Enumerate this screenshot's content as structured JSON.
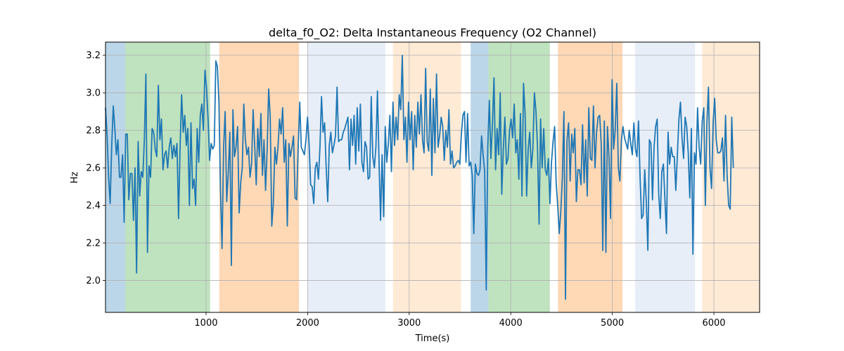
{
  "chart_data": {
    "type": "line",
    "title": "delta_f0_O2: Delta Instantaneous Frequency (O2 Channel)",
    "xlabel": "Time(s)",
    "ylabel": "Hz",
    "xlim": [
      10,
      6450
    ],
    "ylim": [
      1.83,
      3.27
    ],
    "grid": true,
    "line_color": "#1f77b4",
    "xticks": [
      1000,
      2000,
      3000,
      4000,
      5000,
      6000
    ],
    "xtick_labels": [
      "1000",
      "2000",
      "3000",
      "4000",
      "5000",
      "6000"
    ],
    "yticks": [
      2.0,
      2.2,
      2.4,
      2.6,
      2.8,
      3.0,
      3.2
    ],
    "ytick_labels": [
      "2.0",
      "2.2",
      "2.4",
      "2.6",
      "2.8",
      "3.0",
      "3.2"
    ],
    "bands": [
      {
        "start": 10,
        "end": 205,
        "color": "#1f77b4",
        "opacity": 0.3
      },
      {
        "start": 205,
        "end": 1040,
        "color": "#2ca02c",
        "opacity": 0.3
      },
      {
        "start": 1130,
        "end": 1915,
        "color": "#ff7f0e",
        "opacity": 0.3
      },
      {
        "start": 2000,
        "end": 2765,
        "color": "#aec7e8",
        "opacity": 0.3
      },
      {
        "start": 2840,
        "end": 3510,
        "color": "#ffbb78",
        "opacity": 0.3
      },
      {
        "start": 3605,
        "end": 3780,
        "color": "#1f77b4",
        "opacity": 0.3
      },
      {
        "start": 3780,
        "end": 4385,
        "color": "#2ca02c",
        "opacity": 0.3
      },
      {
        "start": 4465,
        "end": 5100,
        "color": "#ff7f0e",
        "opacity": 0.3
      },
      {
        "start": 5225,
        "end": 5815,
        "color": "#aec7e8",
        "opacity": 0.3
      },
      {
        "start": 5885,
        "end": 6450,
        "color": "#ffbb78",
        "opacity": 0.3
      }
    ],
    "series": [
      {
        "name": "delta_f0_O2",
        "x_start": 10,
        "x_step": 15.3,
        "values": [
          2.92,
          2.78,
          2.55,
          2.41,
          2.72,
          2.93,
          2.81,
          2.67,
          2.75,
          2.55,
          2.55,
          2.67,
          2.31,
          2.78,
          2.78,
          2.43,
          2.57,
          2.57,
          2.32,
          2.6,
          2.04,
          2.74,
          2.45,
          2.58,
          2.55,
          2.75,
          3.1,
          2.15,
          2.61,
          2.55,
          2.81,
          2.79,
          2.7,
          2.66,
          3.04,
          2.75,
          2.86,
          2.59,
          2.67,
          2.69,
          2.6,
          2.71,
          2.76,
          2.65,
          2.72,
          2.66,
          2.73,
          2.33,
          2.71,
          2.99,
          2.79,
          2.88,
          2.72,
          2.81,
          2.4,
          2.84,
          2.49,
          2.54,
          2.4,
          2.81,
          2.63,
          2.88,
          2.94,
          2.8,
          3.12,
          3.03,
          2.86,
          2.64,
          2.73,
          2.7,
          2.72,
          3.17,
          3.14,
          2.95,
          2.48,
          2.17,
          2.71,
          2.9,
          2.42,
          2.57,
          2.79,
          2.08,
          2.91,
          2.66,
          2.71,
          2.82,
          2.36,
          2.52,
          2.6,
          2.94,
          2.75,
          2.67,
          2.71,
          2.55,
          2.62,
          2.91,
          2.72,
          2.51,
          2.81,
          2.66,
          2.89,
          2.56,
          2.75,
          2.48,
          2.69,
          3.02,
          2.87,
          2.29,
          2.41,
          2.71,
          2.62,
          2.71,
          2.86,
          2.78,
          2.92,
          2.63,
          2.75,
          2.29,
          2.73,
          2.66,
          2.71,
          2.77,
          2.44,
          2.43,
          2.71,
          2.95,
          2.71,
          2.69,
          2.67,
          2.75,
          2.87,
          2.73,
          2.51,
          2.5,
          2.41,
          2.6,
          2.63,
          2.54,
          2.71,
          2.98,
          2.79,
          2.84,
          2.6,
          2.42,
          2.72,
          2.79,
          2.68,
          2.72,
          2.77,
          3.03,
          2.74,
          2.75,
          2.75,
          2.79,
          2.81,
          2.84,
          2.87,
          2.59,
          2.86,
          2.72,
          2.88,
          2.62,
          2.92,
          2.69,
          2.94,
          2.63,
          2.58,
          2.74,
          2.71,
          2.54,
          2.55,
          2.98,
          2.66,
          2.6,
          2.71,
          3.01,
          2.64,
          2.32,
          2.67,
          2.34,
          2.82,
          2.63,
          2.73,
          2.88,
          2.58,
          2.95,
          2.72,
          2.87,
          2.75,
          2.99,
          2.91,
          3.2,
          2.75,
          2.87,
          2.63,
          2.95,
          2.75,
          2.9,
          2.59,
          2.88,
          2.71,
          2.95,
          2.78,
          2.99,
          2.75,
          2.68,
          3.13,
          2.74,
          2.69,
          3.02,
          2.56,
          2.97,
          2.68,
          3.1,
          2.71,
          2.77,
          2.87,
          2.82,
          2.64,
          2.8,
          2.71,
          2.91,
          2.62,
          2.69,
          2.6,
          2.61,
          2.63,
          2.64,
          2.62,
          2.78,
          2.88,
          2.9,
          2.63,
          2.89,
          2.61,
          2.63,
          2.56,
          2.25,
          2.62,
          2.57,
          2.56,
          2.59,
          2.77,
          2.67,
          2.58,
          1.95,
          2.71,
          2.96,
          2.65,
          2.83,
          3.08,
          2.59,
          2.81,
          2.67,
          3.0,
          2.46,
          2.7,
          2.87,
          2.62,
          2.65,
          2.8,
          2.86,
          2.76,
          2.94,
          2.68,
          2.75,
          2.54,
          2.89,
          2.45,
          3.05,
          2.89,
          2.45,
          2.7,
          2.79,
          2.6,
          2.7,
          3.0,
          2.9,
          2.71,
          2.3,
          2.86,
          2.6,
          2.81,
          2.59,
          2.56,
          2.65,
          2.41,
          2.63,
          2.74,
          2.82,
          2.52,
          2.4,
          2.25,
          2.37,
          2.55,
          2.9,
          1.9,
          2.75,
          2.84,
          2.53,
          2.78,
          2.68,
          2.81,
          2.42,
          2.59,
          2.59,
          2.51,
          2.83,
          2.52,
          2.75,
          2.45,
          2.92,
          2.65,
          2.64,
          2.93,
          2.6,
          2.79,
          2.87,
          2.88,
          2.73,
          2.16,
          2.85,
          2.15,
          2.82,
          2.66,
          2.33,
          3.07,
          2.7,
          2.8,
          3.05,
          2.6,
          2.53,
          2.75,
          2.82,
          2.76,
          2.73,
          2.7,
          2.8,
          2.73,
          2.67,
          2.84,
          2.7,
          2.66,
          2.85,
          2.55,
          2.33,
          2.35,
          2.59,
          2.42,
          2.16,
          2.75,
          2.73,
          2.43,
          2.71,
          2.82,
          2.86,
          2.46,
          2.33,
          2.58,
          2.62,
          2.43,
          2.25,
          2.79,
          2.62,
          2.71,
          2.66,
          2.66,
          2.48,
          2.67,
          2.86,
          2.95,
          2.76,
          2.65,
          2.87,
          2.82,
          2.68,
          2.44,
          2.81,
          2.14,
          2.68,
          2.62,
          2.92,
          2.71,
          2.62,
          2.85,
          2.92,
          2.4,
          2.84,
          3.03,
          2.6,
          2.49,
          2.84,
          2.97,
          2.75,
          2.68,
          2.68,
          2.69,
          2.76,
          2.53,
          2.88,
          2.56,
          2.4,
          2.38,
          2.87,
          2.6
        ]
      }
    ]
  }
}
